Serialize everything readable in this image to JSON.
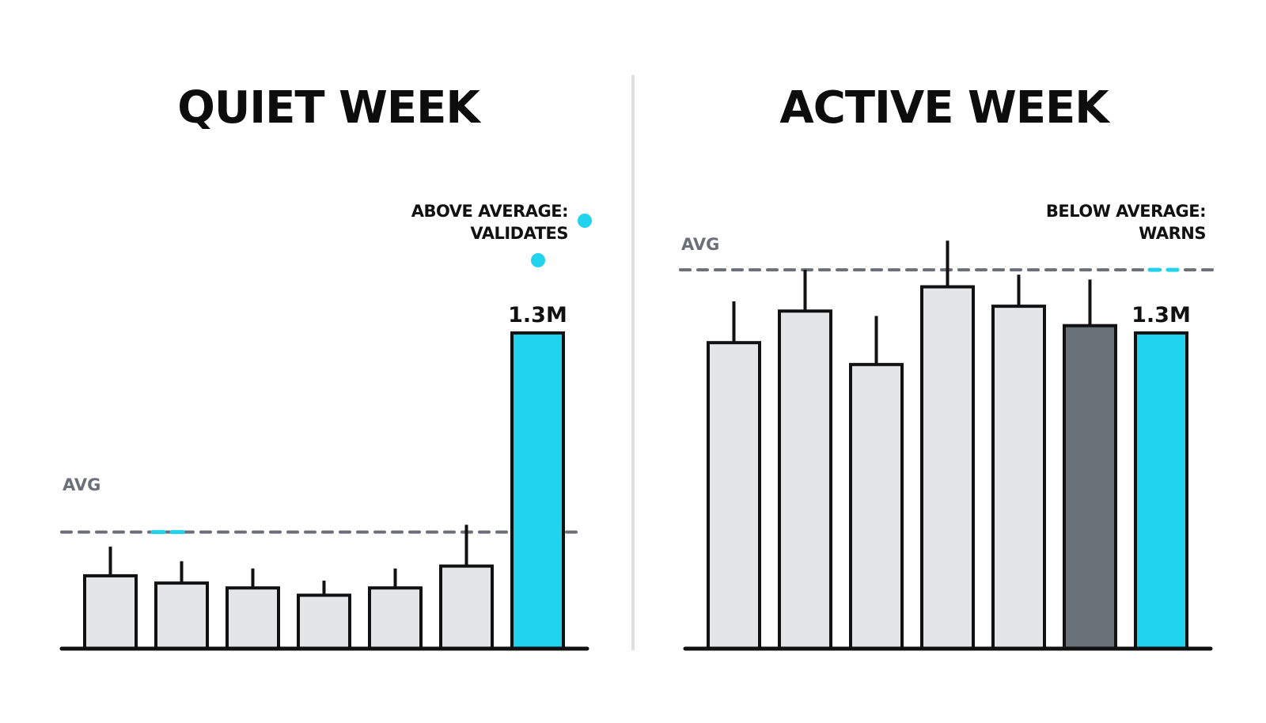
{
  "colors": {
    "bar_fill": "#e4e5e7",
    "bar_stroke": "#111111",
    "highlight": "#22d3ee",
    "dark_bar": "#687078",
    "avg_line": "#6b7078",
    "divider": "#dedede"
  },
  "chart_data": [
    {
      "type": "bar",
      "title": "QUIET WEEK",
      "avg_label": "AVG",
      "annotation": [
        "ABOVE AVERAGE:",
        "VALIDATES"
      ],
      "avg_value": 0.48,
      "ylim": [
        0,
        1.6
      ],
      "bars": [
        {
          "value": 0.3,
          "wick": 0.42,
          "style": "light"
        },
        {
          "value": 0.27,
          "wick": 0.36,
          "style": "light"
        },
        {
          "value": 0.25,
          "wick": 0.33,
          "style": "light"
        },
        {
          "value": 0.22,
          "wick": 0.28,
          "style": "light"
        },
        {
          "value": 0.25,
          "wick": 0.33,
          "style": "light"
        },
        {
          "value": 0.34,
          "wick": 0.51,
          "style": "light"
        },
        {
          "value": 1.3,
          "wick": null,
          "style": "highlight",
          "label": "1.3M"
        }
      ]
    },
    {
      "type": "bar",
      "title": "ACTIVE WEEK",
      "avg_label": "AVG",
      "annotation": [
        "BELOW AVERAGE:",
        "WARNS"
      ],
      "avg_value": 1.56,
      "ylim": [
        0,
        1.6
      ],
      "bars": [
        {
          "value": 1.26,
          "wick": 1.43,
          "style": "light"
        },
        {
          "value": 1.39,
          "wick": 1.56,
          "style": "light"
        },
        {
          "value": 1.17,
          "wick": 1.37,
          "style": "light"
        },
        {
          "value": 1.49,
          "wick": 1.68,
          "style": "light"
        },
        {
          "value": 1.41,
          "wick": 1.54,
          "style": "light"
        },
        {
          "value": 1.33,
          "wick": 1.52,
          "style": "dark"
        },
        {
          "value": 1.3,
          "wick": null,
          "style": "highlight",
          "label": "1.3M"
        }
      ]
    }
  ]
}
